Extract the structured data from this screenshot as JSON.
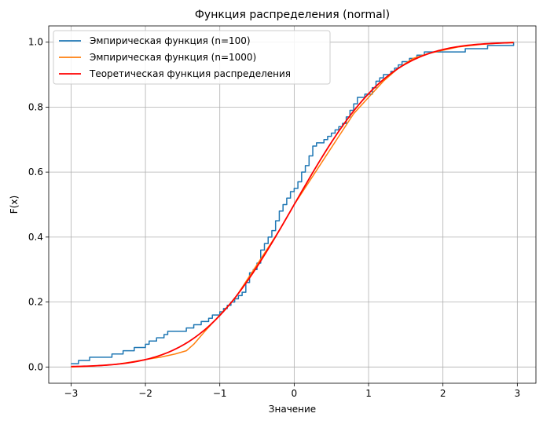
{
  "chart_data": {
    "type": "line",
    "title": "Функция распределения (normal)",
    "xlabel": "Значение",
    "ylabel": "F(x)",
    "xlim": [
      -3.3,
      3.25
    ],
    "ylim": [
      -0.05,
      1.05
    ],
    "x_ticks": [
      -3,
      -2,
      -1,
      0,
      1,
      2,
      3
    ],
    "y_ticks": [
      0.0,
      0.2,
      0.4,
      0.6,
      0.8,
      1.0
    ],
    "x_tick_labels": [
      "−3",
      "−2",
      "−1",
      "0",
      "1",
      "2",
      "3"
    ],
    "y_tick_labels": [
      "0.0",
      "0.2",
      "0.4",
      "0.6",
      "0.8",
      "1.0"
    ],
    "grid": true,
    "legend_position": "upper-left",
    "series": [
      {
        "name": "Эмпирическая функция (n=100)",
        "color": "#1f77b4",
        "style": "step",
        "x": [
          -3.0,
          -2.9,
          -2.75,
          -2.45,
          -2.3,
          -2.15,
          -2.0,
          -1.95,
          -1.9,
          -1.85,
          -1.75,
          -1.7,
          -1.65,
          -1.45,
          -1.35,
          -1.25,
          -1.15,
          -1.1,
          -1.0,
          -0.95,
          -0.9,
          -0.85,
          -0.8,
          -0.75,
          -0.7,
          -0.65,
          -0.6,
          -0.55,
          -0.5,
          -0.45,
          -0.4,
          -0.35,
          -0.3,
          -0.25,
          -0.2,
          -0.15,
          -0.1,
          -0.05,
          0.0,
          0.05,
          0.1,
          0.15,
          0.2,
          0.25,
          0.3,
          0.4,
          0.45,
          0.5,
          0.55,
          0.6,
          0.65,
          0.7,
          0.75,
          0.8,
          0.85,
          0.95,
          1.05,
          1.1,
          1.15,
          1.2,
          1.3,
          1.35,
          1.4,
          1.45,
          1.55,
          1.65,
          1.7,
          1.75,
          1.8,
          2.05,
          2.3,
          2.6,
          2.65,
          2.95
        ],
        "y": [
          0.01,
          0.02,
          0.03,
          0.04,
          0.05,
          0.06,
          0.07,
          0.08,
          0.08,
          0.09,
          0.1,
          0.11,
          0.11,
          0.12,
          0.13,
          0.14,
          0.15,
          0.16,
          0.17,
          0.18,
          0.19,
          0.2,
          0.21,
          0.22,
          0.23,
          0.26,
          0.29,
          0.3,
          0.32,
          0.36,
          0.38,
          0.4,
          0.42,
          0.45,
          0.48,
          0.5,
          0.52,
          0.54,
          0.55,
          0.57,
          0.6,
          0.62,
          0.65,
          0.68,
          0.69,
          0.7,
          0.71,
          0.72,
          0.73,
          0.74,
          0.75,
          0.77,
          0.79,
          0.81,
          0.83,
          0.84,
          0.86,
          0.88,
          0.89,
          0.9,
          0.91,
          0.92,
          0.93,
          0.94,
          0.95,
          0.96,
          0.96,
          0.97,
          0.97,
          0.97,
          0.98,
          0.99,
          0.99,
          1.0
        ]
      },
      {
        "name": "Эмпирическая функция (n=1000)",
        "color": "#ff7f0e",
        "style": "line",
        "x": [
          -3.0,
          -2.7,
          -2.4,
          -2.2,
          -2.0,
          -1.8,
          -1.6,
          -1.45,
          -1.35,
          -1.2,
          -1.0,
          -0.8,
          -0.6,
          -0.4,
          -0.2,
          0.0,
          0.2,
          0.4,
          0.6,
          0.8,
          1.0,
          1.2,
          1.4,
          1.6,
          1.8,
          2.0,
          2.2,
          2.5,
          2.95
        ],
        "y": [
          0.0,
          0.003,
          0.008,
          0.015,
          0.023,
          0.03,
          0.04,
          0.05,
          0.07,
          0.11,
          0.16,
          0.21,
          0.28,
          0.35,
          0.42,
          0.5,
          0.57,
          0.64,
          0.71,
          0.78,
          0.83,
          0.88,
          0.92,
          0.95,
          0.965,
          0.975,
          0.985,
          0.993,
          1.0
        ]
      },
      {
        "name": "Теоретическая функция распределения",
        "color": "#ff0000",
        "style": "normal-cdf",
        "x_range": [
          -3.0,
          2.95
        ]
      }
    ]
  }
}
